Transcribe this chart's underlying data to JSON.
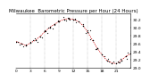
{
  "title": "Milwaukee  Barometric Pressure per Hour (24 Hours)",
  "hours": [
    0,
    1,
    2,
    3,
    4,
    5,
    6,
    7,
    8,
    9,
    10,
    11,
    12,
    13,
    14,
    15,
    16,
    17,
    18,
    19,
    20,
    21,
    22,
    23,
    24
  ],
  "pressure": [
    29.65,
    29.6,
    29.55,
    29.62,
    29.68,
    29.78,
    29.9,
    30.0,
    30.08,
    30.15,
    30.2,
    30.22,
    30.2,
    30.15,
    30.05,
    29.88,
    29.68,
    29.48,
    29.32,
    29.18,
    29.12,
    29.1,
    29.18,
    29.28,
    29.35
  ],
  "line_color": "#cc0000",
  "dot_color": "#000000",
  "bg_color": "#ffffff",
  "grid_color": "#999999",
  "ylim_min": 29.0,
  "ylim_max": 30.35,
  "ytick_values": [
    29.0,
    29.2,
    29.4,
    29.6,
    29.8,
    30.0,
    30.2
  ],
  "ytick_labels": [
    "29.0",
    "29.2",
    "29.4",
    "29.6",
    "29.8",
    "30.0",
    "30.2"
  ],
  "xtick_positions": [
    0,
    3,
    6,
    9,
    12,
    15,
    18,
    21,
    24
  ],
  "xtick_labels": [
    "0",
    "3",
    "6",
    "9",
    "12",
    "15",
    "18",
    "21",
    ""
  ],
  "grid_x": [
    3,
    6,
    9,
    12,
    15,
    18,
    21
  ],
  "title_fontsize": 4.0,
  "tick_fontsize": 3.2,
  "linewidth": 0.5,
  "dot_size": 1.2
}
